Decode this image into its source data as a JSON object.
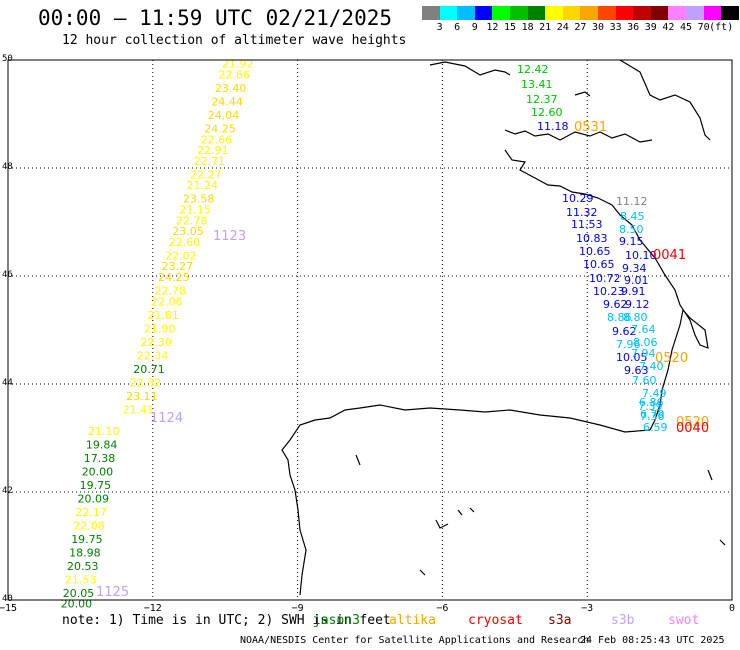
{
  "header": {
    "title": "00:00 – 11:59 UTC 02/21/2025",
    "subtitle": "12 hour collection of altimeter wave heights"
  },
  "colorbar": {
    "colors": [
      "#808080",
      "#00ffff",
      "#00bfff",
      "#0000ff",
      "#00ff00",
      "#00c000",
      "#008000",
      "#ffff00",
      "#ffd700",
      "#ffa500",
      "#ff4500",
      "#ff0000",
      "#c00000",
      "#800000",
      "#ff80ff",
      "#c0a0ff",
      "#ff00ff",
      "#000000"
    ],
    "ticks": [
      "3",
      "6",
      "9",
      "12",
      "15",
      "18",
      "21",
      "24",
      "27",
      "30",
      "33",
      "36",
      "39",
      "42",
      "45",
      "70",
      "(ft)"
    ]
  },
  "axes": {
    "lat_labels": [
      "50",
      "48",
      "46",
      "44",
      "42",
      "40"
    ],
    "lon_labels": [
      "−15",
      "−12",
      "−9",
      "−6",
      "−3",
      "0"
    ]
  },
  "tracks": {
    "track_1123": {
      "label": "1123",
      "points": [
        {
          "lat": 49.95,
          "v": "21.92",
          "c": "#ffff00"
        },
        {
          "lat": 49.75,
          "v": "22.66",
          "c": "#ffff00"
        },
        {
          "lat": 49.5,
          "v": "23.40",
          "c": "#ffd700"
        },
        {
          "lat": 49.25,
          "v": "24.44",
          "c": "#ffd700"
        },
        {
          "lat": 49.0,
          "v": "24.04",
          "c": "#ffd700"
        },
        {
          "lat": 48.75,
          "v": "24.25",
          "c": "#ffd700"
        },
        {
          "lat": 48.55,
          "v": "22.66",
          "c": "#ffff00"
        },
        {
          "lat": 48.35,
          "v": "22.91",
          "c": "#ffff00"
        },
        {
          "lat": 48.15,
          "v": "22.71",
          "c": "#ffff00"
        },
        {
          "lat": 47.9,
          "v": "22.27",
          "c": "#ffff00"
        },
        {
          "lat": 47.7,
          "v": "21.24",
          "c": "#ffff00"
        },
        {
          "lat": 47.45,
          "v": "23.58",
          "c": "#ffd700"
        },
        {
          "lat": 47.25,
          "v": "21.15",
          "c": "#ffff00"
        },
        {
          "lat": 47.05,
          "v": "22.78",
          "c": "#ffff00"
        },
        {
          "lat": 46.85,
          "v": "23.05",
          "c": "#ffd700"
        },
        {
          "lat": 46.65,
          "v": "22.60",
          "c": "#ffff00"
        },
        {
          "lat": 46.4,
          "v": "22.02",
          "c": "#ffff00"
        },
        {
          "lat": 46.2,
          "v": "23.27",
          "c": "#ffd700"
        },
        {
          "lat": 46.0,
          "v": "24.25",
          "c": "#ffd700"
        },
        {
          "lat": 45.75,
          "v": "22.78",
          "c": "#ffff00"
        },
        {
          "lat": 45.55,
          "v": "22.06",
          "c": "#ffff00"
        },
        {
          "lat": 45.3,
          "v": "21.81",
          "c": "#ffff00"
        },
        {
          "lat": 45.05,
          "v": "21.90",
          "c": "#ffff00"
        },
        {
          "lat": 44.8,
          "v": "22.30",
          "c": "#ffff00"
        },
        {
          "lat": 44.55,
          "v": "22.34",
          "c": "#ffff00"
        },
        {
          "lat": 44.3,
          "v": "20.71",
          "c": "#008000"
        },
        {
          "lat": 44.05,
          "v": "22.32",
          "c": "#ffff00"
        },
        {
          "lat": 43.8,
          "v": "23.11",
          "c": "#ffd700"
        },
        {
          "lat": 43.55,
          "v": "21.41",
          "c": "#ffff00"
        }
      ]
    },
    "track_1124": {
      "label": "1124",
      "points": [
        {
          "lat": 43.15,
          "v": "21.10",
          "c": "#ffff00"
        },
        {
          "lat": 42.9,
          "v": "19.84",
          "c": "#008000"
        },
        {
          "lat": 42.65,
          "v": "17.38",
          "c": "#008000"
        },
        {
          "lat": 42.4,
          "v": "20.00",
          "c": "#008000"
        },
        {
          "lat": 42.15,
          "v": "19.75",
          "c": "#008000"
        },
        {
          "lat": 41.9,
          "v": "20.09",
          "c": "#008000"
        },
        {
          "lat": 41.65,
          "v": "22.17",
          "c": "#ffff00"
        },
        {
          "lat": 41.4,
          "v": "22.08",
          "c": "#ffff00"
        },
        {
          "lat": 41.15,
          "v": "19.75",
          "c": "#008000"
        },
        {
          "lat": 40.9,
          "v": "18.98",
          "c": "#008000"
        },
        {
          "lat": 40.65,
          "v": "20.53",
          "c": "#008000"
        },
        {
          "lat": 40.4,
          "v": "21.53",
          "c": "#ffff00"
        },
        {
          "lat": 40.15,
          "v": "20.05",
          "c": "#008000"
        },
        {
          "lat": 39.95,
          "v": "20.00",
          "c": "#008000"
        }
      ]
    },
    "track_1125": {
      "label": "1125"
    },
    "track_0531": {
      "label": "0531",
      "points": [
        {
          "v": "12.42",
          "c": "#00c000"
        },
        {
          "v": "13.41",
          "c": "#00c000"
        },
        {
          "v": "12.37",
          "c": "#00c000"
        },
        {
          "v": "12.60",
          "c": "#00c000"
        },
        {
          "v": "11.18",
          "c": "#0000ff"
        }
      ]
    },
    "track_0041": {
      "label": "0041",
      "points": [
        {
          "v": "10.29",
          "c": "#0000ff"
        },
        {
          "v": "11.12",
          "c": "#808080"
        },
        {
          "v": "11.32",
          "c": "#0000ff"
        },
        {
          "v": "11.53",
          "c": "#0000ff"
        },
        {
          "v": "10.83",
          "c": "#0000ff"
        },
        {
          "v": "10.65",
          "c": "#0000ff"
        },
        {
          "v": "10.65",
          "c": "#0000ff"
        },
        {
          "v": "10.72",
          "c": "#0000ff"
        },
        {
          "v": "10.23",
          "c": "#0000ff"
        },
        {
          "v": "9.91",
          "c": "#0000ff"
        },
        {
          "v": "9.62",
          "c": "#0000ff"
        },
        {
          "v": "9.12",
          "c": "#0000ff"
        },
        {
          "v": "8.86",
          "c": "#00bfff"
        },
        {
          "v": "8.80",
          "c": "#00bfff"
        },
        {
          "v": "9.62",
          "c": "#0000ff"
        },
        {
          "v": "7.96",
          "c": "#00bfff"
        },
        {
          "v": "10.05",
          "c": "#0000ff"
        },
        {
          "v": "9.63",
          "c": "#0000ff"
        }
      ]
    },
    "track_0041_right": {
      "points": [
        {
          "v": "9.15",
          "c": "#0000ff"
        },
        {
          "v": "10.10",
          "c": "#0000ff"
        },
        {
          "v": "9.34",
          "c": "#0000ff"
        },
        {
          "v": "9.01",
          "c": "#0000ff"
        }
      ]
    },
    "track_0520": {
      "label": "0520",
      "points": [
        {
          "v": "8.45",
          "c": "#00bfff"
        },
        {
          "v": "8.50",
          "c": "#00bfff"
        },
        {
          "v": "7.64",
          "c": "#00bfff"
        },
        {
          "v": "8.06",
          "c": "#00bfff"
        },
        {
          "v": "7.94",
          "c": "#00bfff"
        },
        {
          "v": "7.40",
          "c": "#00bfff"
        },
        {
          "v": "7.60",
          "c": "#00bfff"
        },
        {
          "v": "7.49",
          "c": "#00bfff"
        },
        {
          "v": "7.39",
          "c": "#00bfff"
        },
        {
          "v": "7.36",
          "c": "#00bfff"
        },
        {
          "v": "6.86",
          "c": "#00bfff"
        },
        {
          "v": "6.79",
          "c": "#00bfff"
        },
        {
          "v": "6.59",
          "c": "#00bfff"
        }
      ]
    },
    "label_0520b": "0520",
    "label_0040": "0040"
  },
  "legend": {
    "note": "note:  1) Time is in UTC; 2) SWH is in feet",
    "missions": [
      {
        "name": "jason3",
        "color": "#008000"
      },
      {
        "name": "altika",
        "color": "#ffa500"
      },
      {
        "name": "cryosat",
        "color": "#ff0000"
      },
      {
        "name": "s3a",
        "color": "#800000"
      },
      {
        "name": "s3b",
        "color": "#c0a0ff"
      },
      {
        "name": "swot",
        "color": "#ff80ff"
      }
    ]
  },
  "footer": {
    "org": "NOAA/NESDIS Center for Satellite Applications and Research",
    "timestamp": "24 Feb 08:25:43 UTC 2025"
  }
}
